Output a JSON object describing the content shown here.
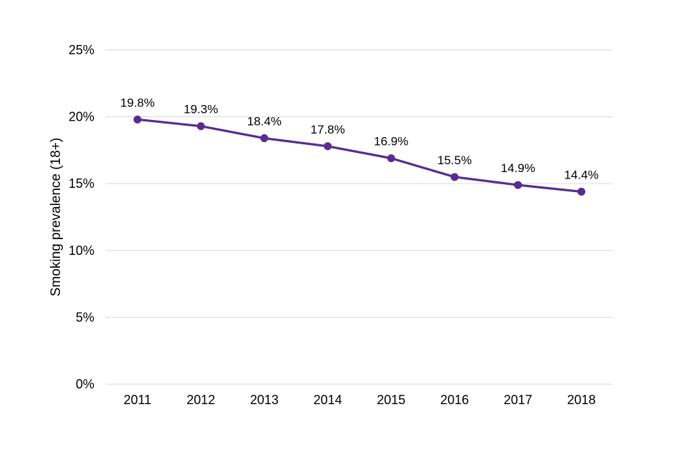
{
  "chart_data": {
    "type": "line",
    "title": "",
    "xlabel": "",
    "ylabel": "Smoking prevalence (18+)",
    "categories": [
      "2011",
      "2012",
      "2013",
      "2014",
      "2015",
      "2016",
      "2017",
      "2018"
    ],
    "series": [
      {
        "values": [
          19.8,
          19.3,
          18.4,
          17.8,
          16.9,
          15.5,
          14.9,
          14.4
        ],
        "color": "#582c91"
      }
    ],
    "data_labels": [
      "19.8%",
      "19.3%",
      "18.4%",
      "17.8%",
      "16.9%",
      "15.5%",
      "14.9%",
      "14.4%"
    ],
    "ylim": [
      0,
      25
    ],
    "yticks": [
      0,
      5,
      10,
      15,
      20,
      25
    ],
    "ytick_labels": [
      "0%",
      "5%",
      "10%",
      "15%",
      "20%",
      "25%"
    ],
    "grid": true,
    "legend": "none"
  }
}
